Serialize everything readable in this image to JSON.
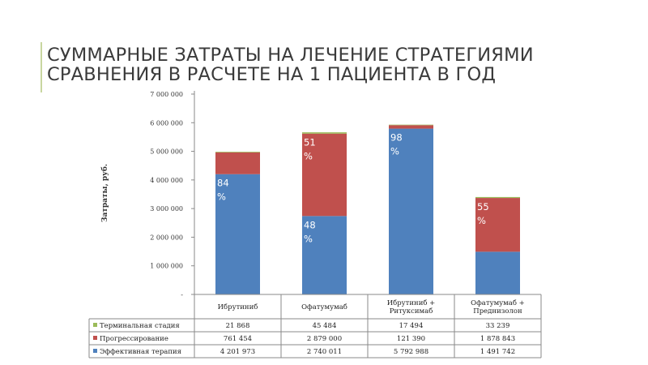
{
  "title_lines": [
    "СУММАРНЫЕ ЗАТРАТЫ НА ЛЕЧЕНИЕ СТРАТЕГИЯМИ",
    "СРАВНЕНИЯ В РАСЧЕТЕ НА 1 ПАЦИЕНТА В ГОД"
  ],
  "colors": {
    "accent": "#c8d6a0",
    "terminal": "#9bbb59",
    "progression": "#c0504d",
    "effective": "#4f81bd",
    "title_text": "#3a3a3a"
  },
  "chart_data": {
    "type": "bar",
    "stacked": true,
    "ylabel": "Затраты, руб.",
    "ylim": [
      0,
      7000000
    ],
    "yticks": [
      "-",
      "1 000 000",
      "2 000 000",
      "3 000 000",
      "4 000 000",
      "5 000 000",
      "6 000 000",
      "7 000 000"
    ],
    "categories": [
      [
        "Ибрутиниб"
      ],
      [
        "Офатумумаб"
      ],
      [
        "Ибрутиниб +",
        "Ритуксимаб"
      ],
      [
        "Офатумумаб +",
        "Преднизолон"
      ]
    ],
    "series": [
      {
        "name": "Эффективная терапия",
        "values": [
          4201973,
          2740011,
          5792988,
          1491742
        ],
        "display": [
          "4 201 973",
          "2 740 011",
          "5 792 988",
          "1 491 742"
        ]
      },
      {
        "name": "Прогрессирование",
        "values": [
          761454,
          2879000,
          121390,
          1878843
        ],
        "display": [
          "761 454",
          "2 879 000",
          "121 390",
          "1 878 843"
        ]
      },
      {
        "name": "Терминальная стадия",
        "values": [
          21868,
          45484,
          17494,
          33239
        ],
        "display": [
          "21 868",
          "45 484",
          "17 494",
          "33 239"
        ]
      }
    ],
    "annotations": [
      {
        "category": 0,
        "series": 0,
        "text": [
          "84",
          "%"
        ]
      },
      {
        "category": 1,
        "series": 1,
        "text": [
          "51",
          "%"
        ]
      },
      {
        "category": 1,
        "series": 0,
        "text": [
          "48",
          "%"
        ]
      },
      {
        "category": 2,
        "series": 0,
        "text": [
          "98",
          "%"
        ]
      },
      {
        "category": 3,
        "series": 1,
        "text": [
          "55",
          "%"
        ]
      }
    ],
    "table_rows_order": [
      2,
      1,
      0
    ]
  }
}
